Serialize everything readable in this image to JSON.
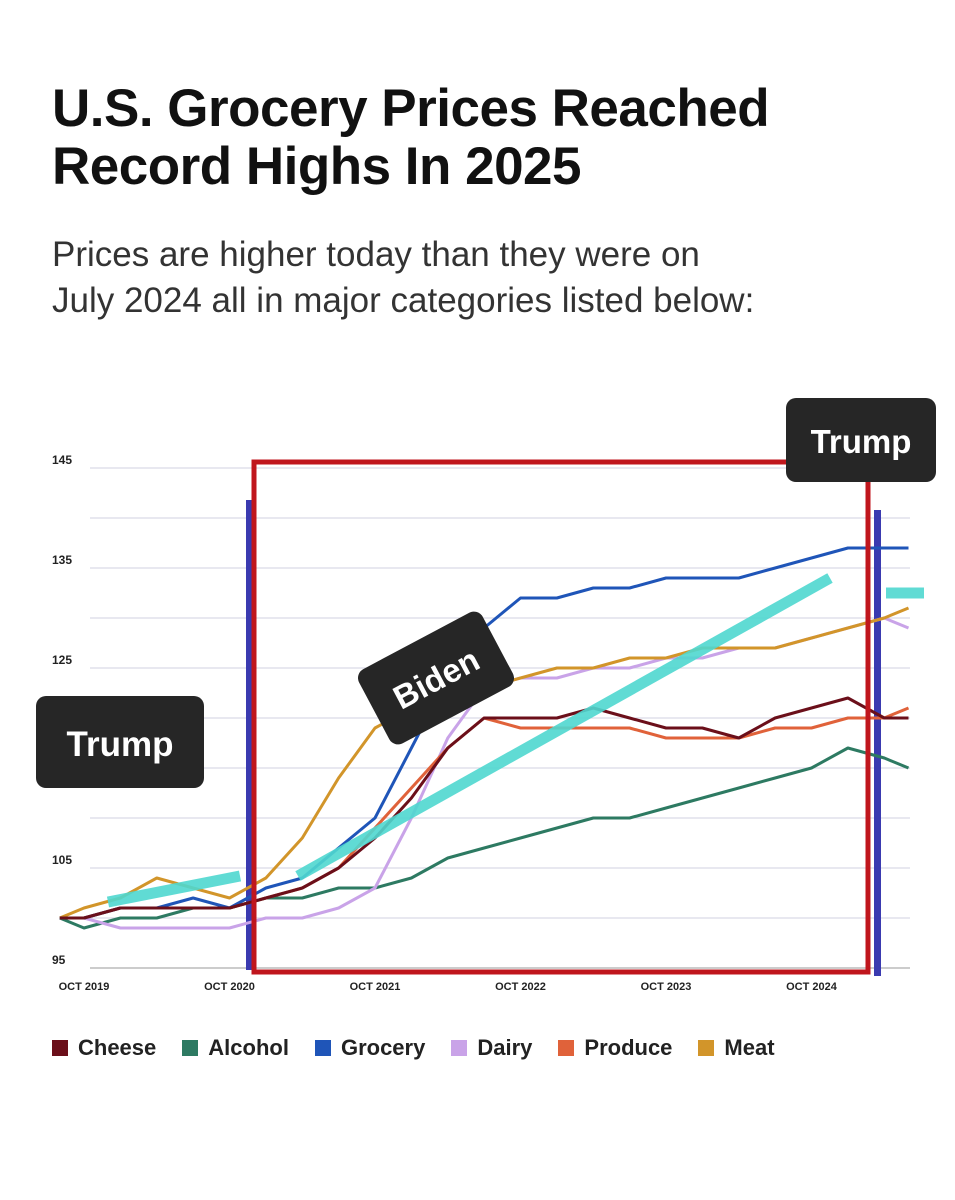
{
  "title": {
    "line1": "U.S. Grocery Prices Reached",
    "line2": "Record Highs In 2025"
  },
  "subtitle": {
    "line1": "Prices are higher today than they were on",
    "line2": "July 2024 all in major categories listed below:"
  },
  "annotations": {
    "trump_left": "Trump",
    "trump_right": "Trump",
    "biden": "Biden"
  },
  "colors": {
    "Cheese": "#6b0f1a",
    "Alcohol": "#2d7a62",
    "Grocery": "#1f55b8",
    "Dairy": "#c9a3e8",
    "Produce": "#e0623a",
    "Meat": "#d2952a",
    "trend": "#4fd8d0",
    "box": "#c0161d",
    "bar": "#3a3ab0",
    "label_bg": "#262626"
  },
  "chart_data": {
    "type": "line",
    "title": "U.S. Grocery Prices Reached Record Highs In 2025",
    "ylim": [
      95,
      145
    ],
    "y_ticks": [
      95,
      105,
      125,
      135,
      145
    ],
    "x_ticks": [
      "OCT 2019",
      "OCT 2020",
      "OCT 2021",
      "OCT 2022",
      "OCT 2023",
      "OCT 2024"
    ],
    "grid": true,
    "legend_position": "bottom",
    "x": [
      "2019-08",
      "2019-10",
      "2020-01",
      "2020-04",
      "2020-07",
      "2020-10",
      "2021-01",
      "2021-04",
      "2021-07",
      "2021-10",
      "2022-01",
      "2022-04",
      "2022-07",
      "2022-10",
      "2023-01",
      "2023-04",
      "2023-07",
      "2023-10",
      "2024-01",
      "2024-04",
      "2024-07",
      "2024-10",
      "2025-01",
      "2025-04",
      "2025-06"
    ],
    "series": [
      {
        "name": "Cheese",
        "values": [
          100,
          100,
          101,
          101,
          101,
          101,
          102,
          103,
          105,
          108,
          112,
          117,
          120,
          120,
          120,
          121,
          120,
          119,
          119,
          118,
          120,
          121,
          122,
          120,
          120
        ]
      },
      {
        "name": "Alcohol",
        "values": [
          100,
          99,
          100,
          100,
          101,
          101,
          102,
          102,
          103,
          103,
          104,
          106,
          107,
          108,
          109,
          110,
          110,
          111,
          112,
          113,
          114,
          115,
          117,
          116,
          115
        ]
      },
      {
        "name": "Grocery",
        "values": [
          100,
          100,
          101,
          101,
          102,
          101,
          103,
          104,
          107,
          110,
          117,
          124,
          129,
          132,
          132,
          133,
          133,
          134,
          134,
          134,
          135,
          136,
          137,
          137,
          137
        ]
      },
      {
        "name": "Dairy",
        "values": [
          100,
          100,
          99,
          99,
          99,
          99,
          100,
          100,
          101,
          103,
          110,
          118,
          123,
          124,
          124,
          125,
          125,
          126,
          126,
          127,
          127,
          128,
          129,
          130,
          129
        ]
      },
      {
        "name": "Produce",
        "values": [
          100,
          100,
          101,
          101,
          101,
          101,
          102,
          103,
          105,
          109,
          113,
          117,
          120,
          119,
          119,
          119,
          119,
          118,
          118,
          118,
          119,
          119,
          120,
          120,
          121
        ]
      },
      {
        "name": "Meat",
        "values": [
          100,
          101,
          102,
          104,
          103,
          102,
          104,
          108,
          114,
          119,
          121,
          122,
          123,
          124,
          125,
          125,
          126,
          126,
          127,
          127,
          127,
          128,
          129,
          130,
          131
        ]
      }
    ]
  }
}
